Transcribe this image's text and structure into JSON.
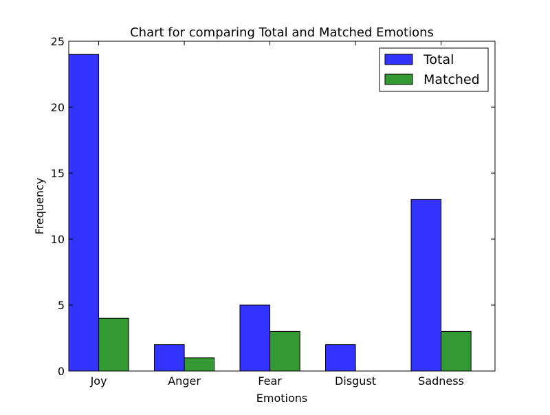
{
  "chart_data": {
    "type": "bar",
    "title": "Chart for comparing Total and Matched Emotions",
    "xlabel": "Emotions",
    "ylabel": "Frequency",
    "categories": [
      "Joy",
      "Anger",
      "Fear",
      "Disgust",
      "Sadness"
    ],
    "series": [
      {
        "name": "Total",
        "values": [
          24,
          2,
          5,
          2,
          13
        ],
        "color": "#3333ff"
      },
      {
        "name": "Matched",
        "values": [
          4,
          1,
          3,
          0,
          3
        ],
        "color": "#339933"
      }
    ],
    "ylim": [
      0,
      25
    ],
    "yticks": [
      0,
      5,
      10,
      15,
      20,
      25
    ],
    "legend_position": "top-right",
    "grid": false
  }
}
